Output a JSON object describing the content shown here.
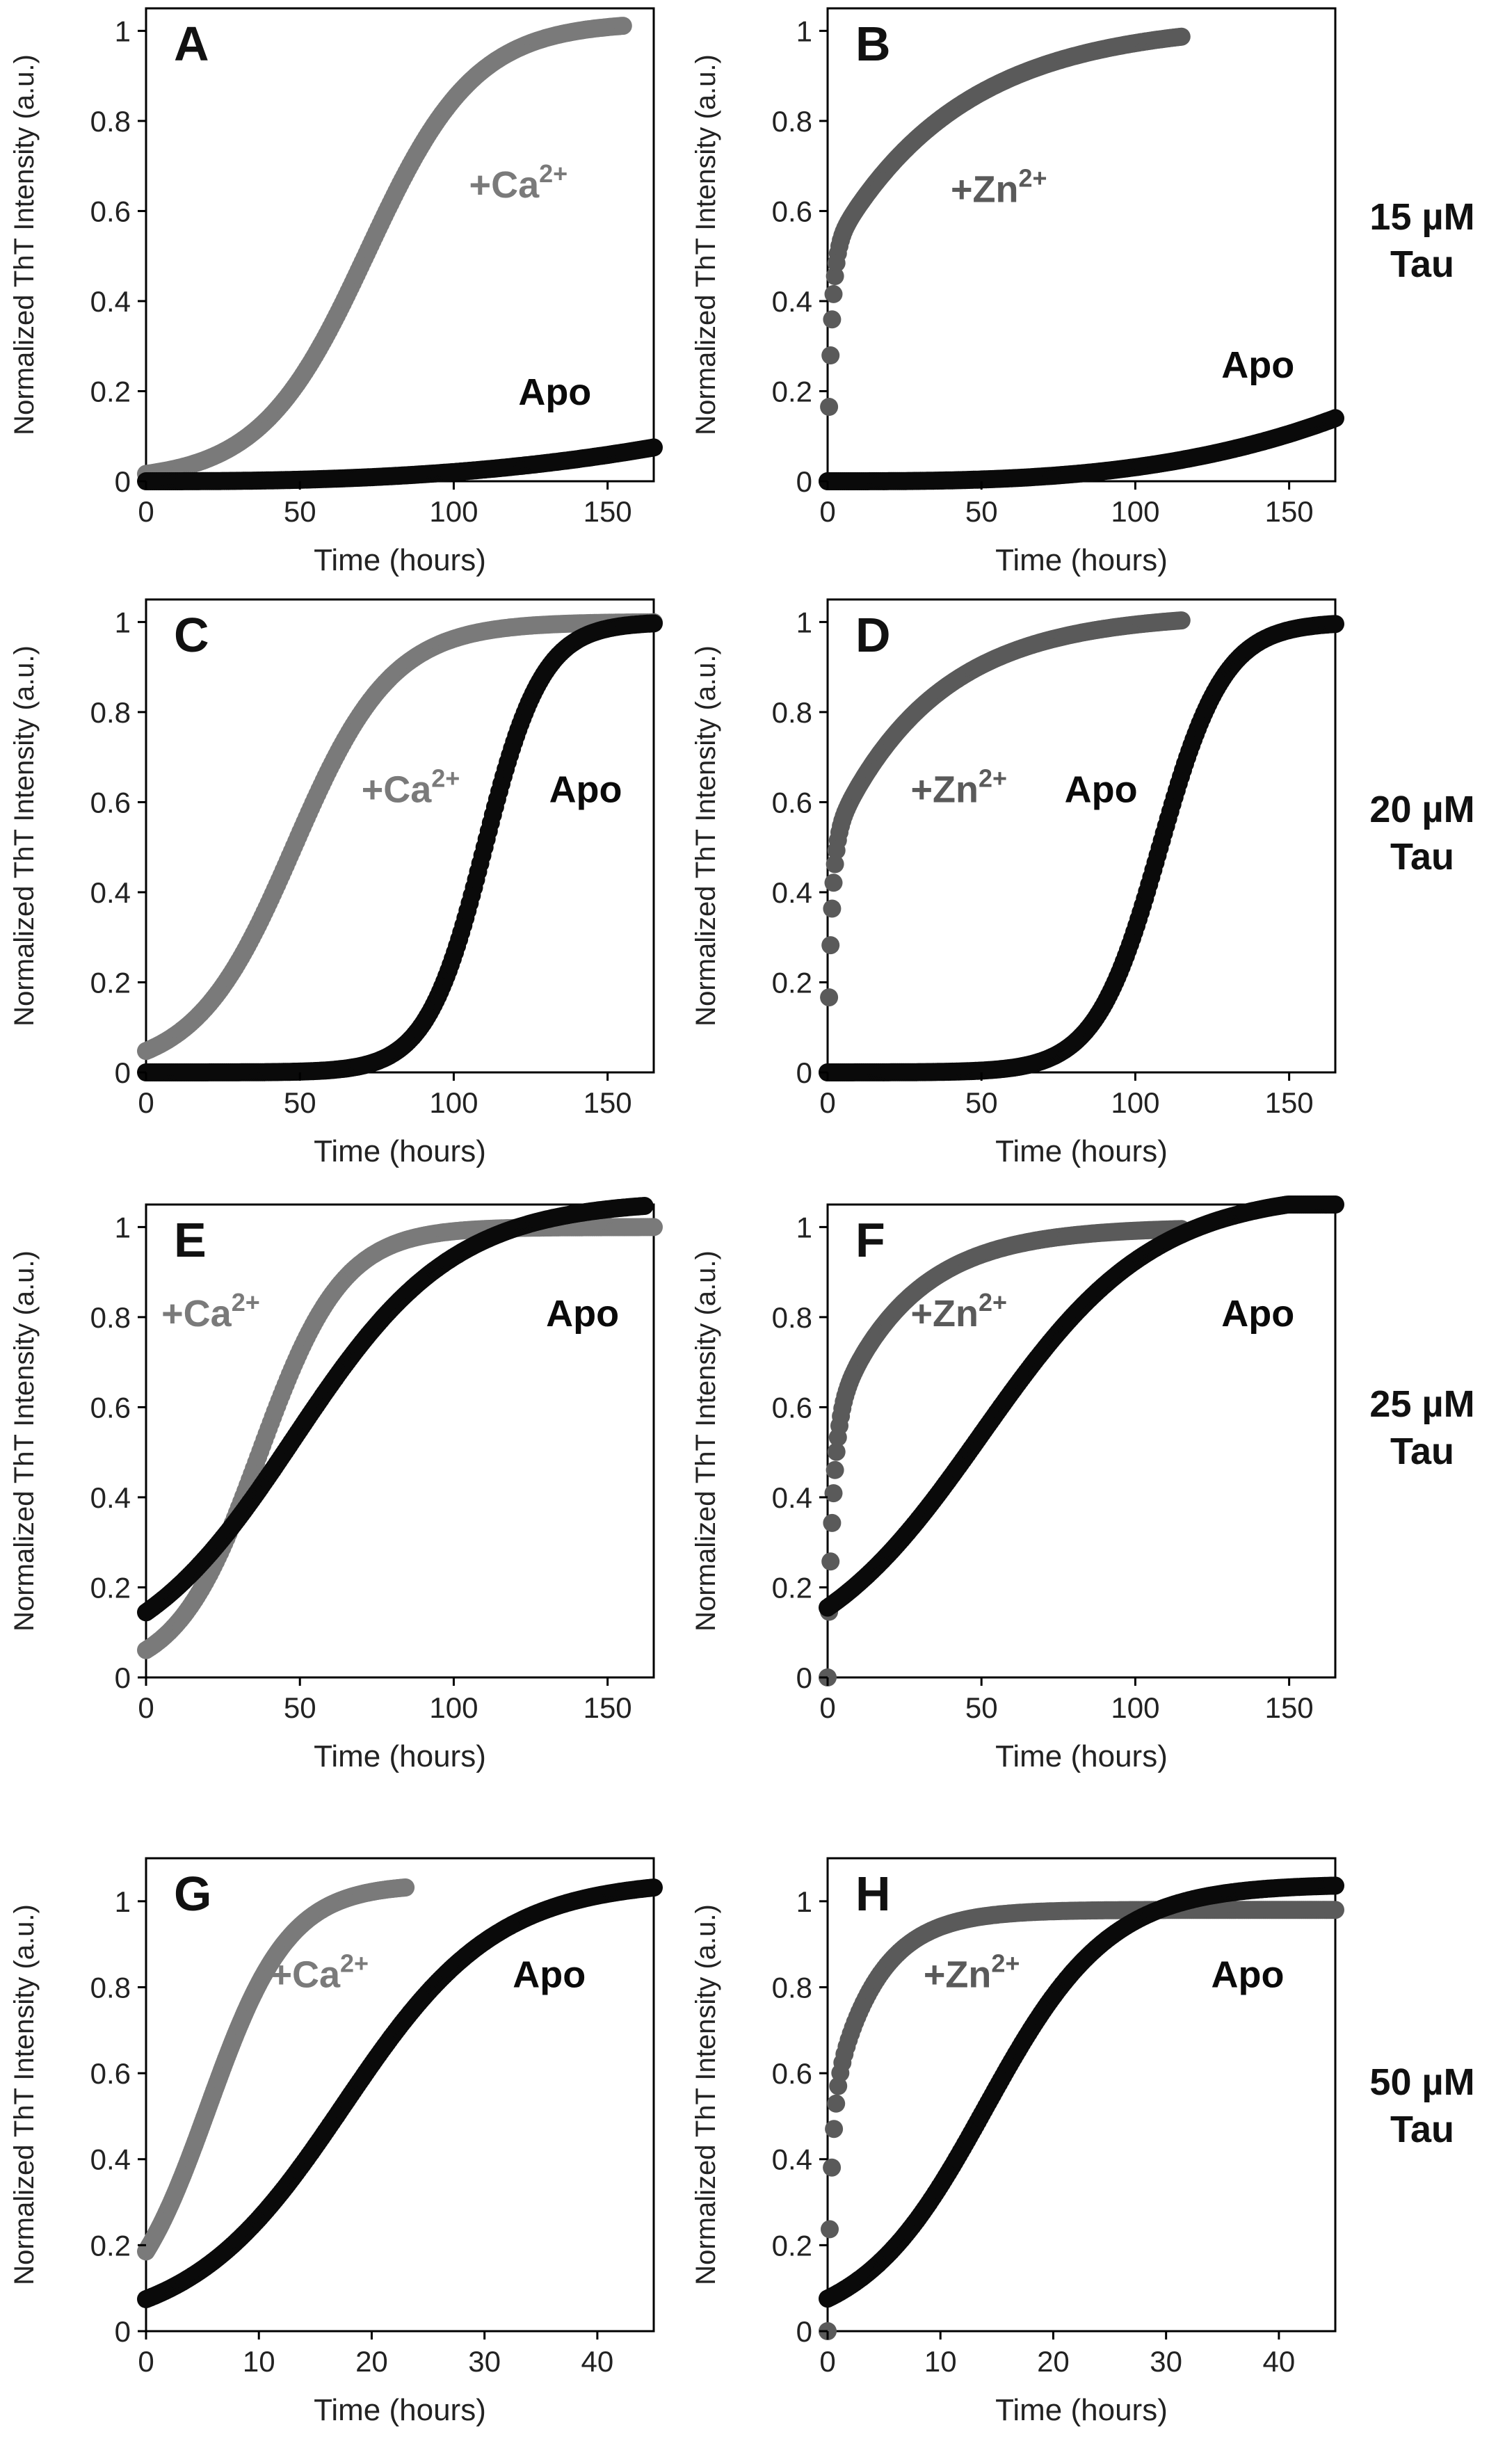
{
  "figure": {
    "row_labels": [
      {
        "conc": "15 µM",
        "protein": "Tau"
      },
      {
        "conc": "20 µM",
        "protein": "Tau"
      },
      {
        "conc": "25 µM",
        "protein": "Tau"
      },
      {
        "conc": "50 µM",
        "protein": "Tau"
      }
    ]
  },
  "colors": {
    "apo": "#0a0a0a",
    "ca": "#7a7a7a",
    "zn": "#5a5a5a",
    "axis": "#000000",
    "text": "#222222"
  },
  "chart_data": [
    {
      "panel": "A",
      "type": "scatter",
      "xlabel": "Time (hours)",
      "ylabel": "Normalized ThT Intensity (a.u.)",
      "xlim": [
        0,
        165
      ],
      "ylim": [
        0,
        1.05
      ],
      "xticks": [
        0,
        50,
        100,
        150
      ],
      "yticks": [
        0,
        0.2,
        0.4,
        0.6,
        0.8,
        1
      ],
      "ytick_labels": [
        "0",
        "0.2",
        "0.4",
        "0.6",
        "0.8",
        "1"
      ],
      "series": [
        {
          "name": "+Ca",
          "sup": "2+",
          "color_key": "ca",
          "model": "sigmoid",
          "params": {
            "A": 1.02,
            "x0": 72,
            "k": 17.5,
            "tmax": 155
          },
          "label_pos": [
            105,
            0.63
          ]
        },
        {
          "name": "Apo",
          "color_key": "apo",
          "model": "power",
          "params": {
            "A": 0.075,
            "p": 2.6,
            "tend": 165,
            "tmax": 165
          },
          "label_pos": [
            121,
            0.17
          ]
        }
      ]
    },
    {
      "panel": "B",
      "type": "scatter",
      "xlabel": "Time (hours)",
      "ylabel": "Normalized ThT Intensity (a.u.)",
      "xlim": [
        0,
        165
      ],
      "ylim": [
        0,
        1.05
      ],
      "xticks": [
        0,
        50,
        100,
        150
      ],
      "yticks": [
        0,
        0.2,
        0.4,
        0.6,
        0.8,
        1
      ],
      "ytick_labels": [
        "0",
        "0.2",
        "0.4",
        "0.6",
        "0.8",
        "1"
      ],
      "series": [
        {
          "name": "+Zn",
          "sup": "2+",
          "color_key": "zn",
          "model": "burst",
          "params": {
            "a1": 0.5,
            "k1": 0.8,
            "a2": 0.52,
            "k2": 0.024,
            "tmax": 115
          },
          "label_pos": [
            40,
            0.62
          ]
        },
        {
          "name": "Apo",
          "color_key": "apo",
          "model": "power",
          "params": {
            "A": 0.14,
            "p": 3.0,
            "tend": 165,
            "tmax": 165
          },
          "label_pos": [
            128,
            0.23
          ]
        }
      ]
    },
    {
      "panel": "C",
      "type": "scatter",
      "xlabel": "Time (hours)",
      "ylabel": "Normalized ThT Intensity (a.u.)",
      "xlim": [
        0,
        165
      ],
      "ylim": [
        0,
        1.05
      ],
      "xticks": [
        0,
        50,
        100,
        150
      ],
      "yticks": [
        0,
        0.2,
        0.4,
        0.6,
        0.8,
        1
      ],
      "ytick_labels": [
        "0",
        "0.2",
        "0.4",
        "0.6",
        "0.8",
        "1"
      ],
      "series": [
        {
          "name": "+Ca",
          "sup": "2+",
          "color_key": "ca",
          "model": "sigmoid",
          "params": {
            "A": 1.0,
            "x0": 48,
            "k": 16,
            "tmax": 165
          },
          "label_pos": [
            70,
            0.6
          ]
        },
        {
          "name": "Apo",
          "color_key": "apo",
          "model": "sigmoid",
          "params": {
            "A": 1.0,
            "x0": 110,
            "k": 9.5,
            "tmax": 165
          },
          "label_pos": [
            131,
            0.6
          ]
        }
      ]
    },
    {
      "panel": "D",
      "type": "scatter",
      "xlabel": "Time (hours)",
      "ylabel": "Normalized ThT Intensity (a.u.)",
      "xlim": [
        0,
        165
      ],
      "ylim": [
        0,
        1.05
      ],
      "xticks": [
        0,
        50,
        100,
        150
      ],
      "yticks": [
        0,
        0.2,
        0.4,
        0.6,
        0.8,
        1
      ],
      "ytick_labels": [
        "0",
        "0.2",
        "0.4",
        "0.6",
        "0.8",
        "1"
      ],
      "series": [
        {
          "name": "+Zn",
          "sup": "2+",
          "color_key": "zn",
          "model": "burst",
          "params": {
            "a1": 0.5,
            "k1": 0.8,
            "a2": 0.52,
            "k2": 0.03,
            "tmax": 115
          },
          "label_pos": [
            27,
            0.6
          ]
        },
        {
          "name": "Apo",
          "color_key": "apo",
          "model": "sigmoid",
          "params": {
            "A": 1.0,
            "x0": 108,
            "k": 10.5,
            "tmax": 165
          },
          "label_pos": [
            77,
            0.6
          ]
        }
      ]
    },
    {
      "panel": "E",
      "type": "scatter",
      "xlabel": "Time (hours)",
      "ylabel": "Normalized ThT Intensity (a.u.)",
      "xlim": [
        0,
        165
      ],
      "ylim": [
        0,
        1.05
      ],
      "xticks": [
        0,
        50,
        100,
        150
      ],
      "yticks": [
        0,
        0.2,
        0.4,
        0.6,
        0.8,
        1
      ],
      "ytick_labels": [
        "0",
        "0.2",
        "0.4",
        "0.6",
        "0.8",
        "1"
      ],
      "series": [
        {
          "name": "+Ca",
          "sup": "2+",
          "color_key": "ca",
          "model": "sigmoid",
          "params": {
            "A": 1.0,
            "x0": 37,
            "k": 13.5,
            "tmax": 165
          },
          "label_pos": [
            5,
            0.78
          ]
        },
        {
          "name": "Apo",
          "color_key": "apo",
          "model": "sigmoid",
          "params": {
            "A": 1.06,
            "x0": 48,
            "k": 26,
            "tmax": 162
          },
          "label_pos": [
            130,
            0.78
          ]
        }
      ]
    },
    {
      "panel": "F",
      "type": "scatter",
      "xlabel": "Time (hours)",
      "ylabel": "Normalized ThT Intensity (a.u.)",
      "xlim": [
        0,
        165
      ],
      "ylim": [
        0,
        1.05
      ],
      "xticks": [
        0,
        50,
        100,
        150
      ],
      "yticks": [
        0,
        0.2,
        0.4,
        0.6,
        0.8,
        1
      ],
      "ytick_labels": [
        "0",
        "0.2",
        "0.4",
        "0.6",
        "0.8",
        "1"
      ],
      "series": [
        {
          "name": "+Zn",
          "sup": "2+",
          "color_key": "zn",
          "model": "burst",
          "params": {
            "a1": 0.55,
            "k1": 0.6,
            "a2": 0.45,
            "k2": 0.04,
            "tmax": 115
          },
          "label_pos": [
            27,
            0.78
          ]
        },
        {
          "name": "Apo",
          "color_key": "apo",
          "model": "sigmoid",
          "params": {
            "A": 1.08,
            "x0": 50,
            "k": 28,
            "tmax": 165
          },
          "label_pos": [
            128,
            0.78
          ]
        }
      ]
    },
    {
      "panel": "G",
      "type": "scatter",
      "xlabel": "Time (hours)",
      "ylabel": "Normalized ThT Intensity (a.u.)",
      "xlim": [
        0,
        45
      ],
      "ylim": [
        0,
        1.1
      ],
      "xticks": [
        0,
        10,
        20,
        30,
        40
      ],
      "yticks": [
        0,
        0.2,
        0.4,
        0.6,
        0.8,
        1
      ],
      "ytick_labels": [
        "0",
        "0.2",
        "0.4",
        "0.6",
        "0.8",
        "1"
      ],
      "series": [
        {
          "name": "+Ca",
          "sup": "2+",
          "color_key": "ca",
          "model": "sigmoid",
          "params": {
            "A": 1.04,
            "x0": 5.5,
            "k": 3.6,
            "tmax": 23
          },
          "label_pos": [
            11,
            0.8
          ]
        },
        {
          "name": "Apo",
          "color_key": "apo",
          "model": "sigmoid",
          "params": {
            "A": 1.05,
            "x0": 17.5,
            "k": 6.8,
            "tmax": 45
          },
          "label_pos": [
            32.5,
            0.8
          ]
        }
      ]
    },
    {
      "panel": "H",
      "type": "scatter",
      "xlabel": "Time (hours)",
      "ylabel": "Normalized ThT Intensity (a.u.)",
      "xlim": [
        0,
        45
      ],
      "ylim": [
        0,
        1.1
      ],
      "xticks": [
        0,
        10,
        20,
        30,
        40
      ],
      "yticks": [
        0,
        0.2,
        0.4,
        0.6,
        0.8,
        1
      ],
      "ytick_labels": [
        "0",
        "0.2",
        "0.4",
        "0.6",
        "0.8",
        "1"
      ],
      "series": [
        {
          "name": "+Zn",
          "sup": "2+",
          "color_key": "zn",
          "model": "burst",
          "params": {
            "a1": 0.5,
            "k1": 3.0,
            "a2": 0.48,
            "k2": 0.25,
            "tmax": 45
          },
          "label_pos": [
            8.5,
            0.8
          ]
        },
        {
          "name": "Apo",
          "color_key": "apo",
          "model": "sigmoid",
          "params": {
            "A": 1.04,
            "x0": 14,
            "k": 5.5,
            "tmax": 45
          },
          "label_pos": [
            34,
            0.8
          ]
        }
      ]
    }
  ]
}
